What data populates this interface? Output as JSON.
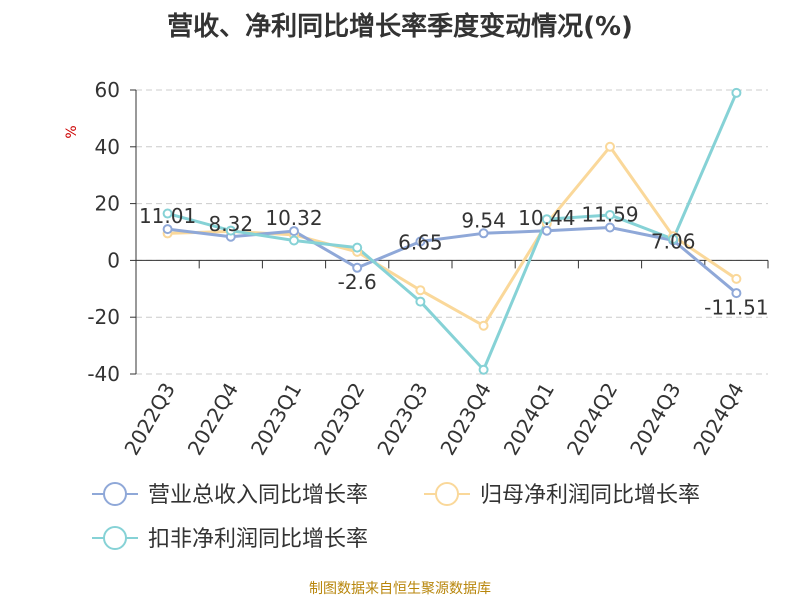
{
  "title": "营收、净利同比增长率季度变动情况(%)",
  "source": "制图数据来自恒生聚源数据库",
  "chart_data": {
    "type": "line",
    "ylabel": "%",
    "ylim": [
      -40,
      60
    ],
    "yticks": [
      60,
      40,
      20,
      0,
      -20,
      -40
    ],
    "grid": true,
    "legend_position": "bottom",
    "categories": [
      "2022Q3",
      "2022Q4",
      "2023Q1",
      "2023Q2",
      "2023Q3",
      "2023Q4",
      "2024Q1",
      "2024Q2",
      "2024Q3",
      "2024Q4"
    ],
    "series": [
      {
        "name": "营业总收入同比增长率",
        "color": "#8fa8d8",
        "values": [
          11.01,
          8.32,
          10.32,
          -2.6,
          6.65,
          9.54,
          10.44,
          11.59,
          7.06,
          -11.51
        ],
        "labels": [
          "11.01",
          "8.32",
          "10.32",
          "-2.6",
          "6.65",
          "9.54",
          "10.44",
          "11.59",
          "7.06",
          "-11.51"
        ]
      },
      {
        "name": "归母净利润同比增长率",
        "color": "#fad89a",
        "values": [
          9.5,
          10.2,
          9.0,
          3.0,
          -10.5,
          -23.0,
          13.0,
          40.0,
          8.5,
          -6.5
        ]
      },
      {
        "name": "扣非净利润同比增长率",
        "color": "#86d2d6",
        "values": [
          16.5,
          10.5,
          7.0,
          4.5,
          -14.5,
          -38.5,
          14.5,
          16.0,
          7.5,
          59.0
        ]
      }
    ]
  }
}
